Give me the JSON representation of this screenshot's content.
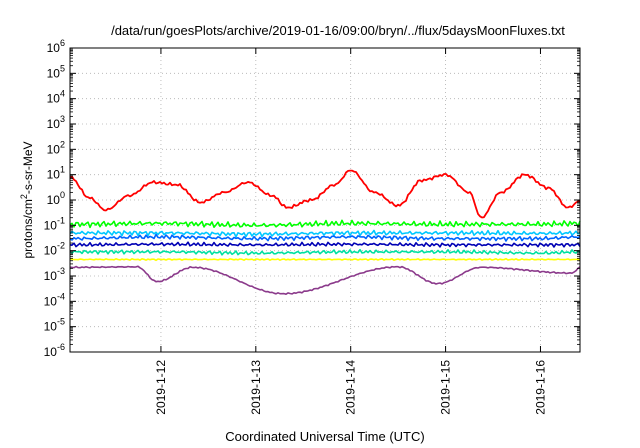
{
  "chart_data": {
    "type": "line",
    "title": "/data/run/goesPlots/archive/2019-01-16/09:00/bryn/../flux/5daysMoonFluxes.txt",
    "xlabel": "Coordinated Universal Time (UTC)",
    "ylabel": {
      "base": "protons/cm",
      "sup": "2",
      "rest": "-s-sr-MeV"
    },
    "x_range": [
      "2019-01-11T01:00",
      "2019-01-16T10:00"
    ],
    "x_ticks": [
      "2019-1-12",
      "2019-1-13",
      "2019-1-14",
      "2019-1-15",
      "2019-1-16"
    ],
    "y_scale": "log",
    "ylim": [
      1e-06,
      1000000
    ],
    "y_ticks": [
      {
        "base": "10",
        "exp": "-6"
      },
      {
        "base": "10",
        "exp": "-5"
      },
      {
        "base": "10",
        "exp": "-4"
      },
      {
        "base": "10",
        "exp": "-3"
      },
      {
        "base": "10",
        "exp": "-2"
      },
      {
        "base": "10",
        "exp": "-1"
      },
      {
        "base": "10",
        "exp": "0"
      },
      {
        "base": "10",
        "exp": "1"
      },
      {
        "base": "10",
        "exp": "2"
      },
      {
        "base": "10",
        "exp": "3"
      },
      {
        "base": "10",
        "exp": "4"
      },
      {
        "base": "10",
        "exp": "5"
      },
      {
        "base": "10",
        "exp": "6"
      }
    ],
    "grid": true,
    "series": [
      {
        "color": "#ff0000",
        "x": [
          "2019-01-11T01:00",
          "2019-01-11T06:00",
          "2019-01-11T10:00",
          "2019-01-11T16:00",
          "2019-01-11T22:00",
          "2019-01-12T04:00",
          "2019-01-12T10:00",
          "2019-01-12T16:00",
          "2019-01-12T22:00",
          "2019-01-13T04:00",
          "2019-01-13T08:00",
          "2019-01-13T14:00",
          "2019-01-13T20:00",
          "2019-01-14T00:00",
          "2019-01-14T06:00",
          "2019-01-14T12:00",
          "2019-01-14T18:00",
          "2019-01-15T00:00",
          "2019-01-15T06:00",
          "2019-01-15T09:00",
          "2019-01-15T14:00",
          "2019-01-15T20:00",
          "2019-01-16T02:00",
          "2019-01-16T07:00",
          "2019-01-16T10:00"
        ],
        "y": [
          8,
          1.2,
          0.4,
          1.5,
          5,
          4,
          0.8,
          2,
          5,
          1.5,
          0.5,
          1,
          4,
          15,
          2,
          0.6,
          6,
          10,
          2,
          0.2,
          2,
          10,
          3,
          0.5,
          0.9
        ]
      },
      {
        "color": "#00ff00",
        "x": [
          "2019-01-11T01:00",
          "2019-01-12T00:00",
          "2019-01-13T00:00",
          "2019-01-14T00:00",
          "2019-01-15T00:00",
          "2019-01-16T00:00",
          "2019-01-16T10:00"
        ],
        "y": [
          0.11,
          0.12,
          0.1,
          0.12,
          0.11,
          0.11,
          0.12
        ]
      },
      {
        "color": "#00c8ff",
        "x": [
          "2019-01-11T01:00",
          "2019-01-12T00:00",
          "2019-01-13T00:00",
          "2019-01-14T00:00",
          "2019-01-15T00:00",
          "2019-01-16T00:00",
          "2019-01-16T10:00"
        ],
        "y": [
          0.05,
          0.05,
          0.045,
          0.05,
          0.05,
          0.048,
          0.05
        ]
      },
      {
        "color": "#0064ff",
        "x": [
          "2019-01-11T01:00",
          "2019-01-12T00:00",
          "2019-01-13T00:00",
          "2019-01-14T00:00",
          "2019-01-15T00:00",
          "2019-01-16T00:00",
          "2019-01-16T10:00"
        ],
        "y": [
          0.03,
          0.035,
          0.03,
          0.035,
          0.03,
          0.03,
          0.035
        ]
      },
      {
        "color": "#0000b4",
        "x": [
          "2019-01-11T01:00",
          "2019-01-12T00:00",
          "2019-01-13T00:00",
          "2019-01-14T00:00",
          "2019-01-15T00:00",
          "2019-01-16T00:00",
          "2019-01-16T10:00"
        ],
        "y": [
          0.017,
          0.018,
          0.017,
          0.018,
          0.017,
          0.017,
          0.017
        ]
      },
      {
        "color": "#00e0a0",
        "x": [
          "2019-01-11T01:00",
          "2019-01-12T00:00",
          "2019-01-13T00:00",
          "2019-01-14T00:00",
          "2019-01-15T00:00",
          "2019-01-16T00:00",
          "2019-01-16T10:00"
        ],
        "y": [
          0.009,
          0.009,
          0.008,
          0.009,
          0.009,
          0.008,
          0.009
        ]
      },
      {
        "color": "#ffff00",
        "x": [
          "2019-01-11T01:00",
          "2019-01-12T00:00",
          "2019-01-13T00:00",
          "2019-01-14T00:00",
          "2019-01-15T00:00",
          "2019-01-16T00:00",
          "2019-01-16T10:00"
        ],
        "y": [
          0.0045,
          0.0045,
          0.0045,
          0.0045,
          0.0045,
          0.0045,
          0.0045
        ]
      },
      {
        "color": "#8b3a8b",
        "x": [
          "2019-01-11T01:00",
          "2019-01-11T18:00",
          "2019-01-11T23:00",
          "2019-01-12T08:00",
          "2019-01-13T07:00",
          "2019-01-14T12:00",
          "2019-01-14T22:00",
          "2019-01-15T09:00",
          "2019-01-16T08:00",
          "2019-01-16T10:00"
        ],
        "y": [
          0.0022,
          0.0023,
          0.0006,
          0.0022,
          0.0002,
          0.0023,
          0.0005,
          0.0022,
          0.0013,
          0.0022
        ]
      }
    ]
  }
}
